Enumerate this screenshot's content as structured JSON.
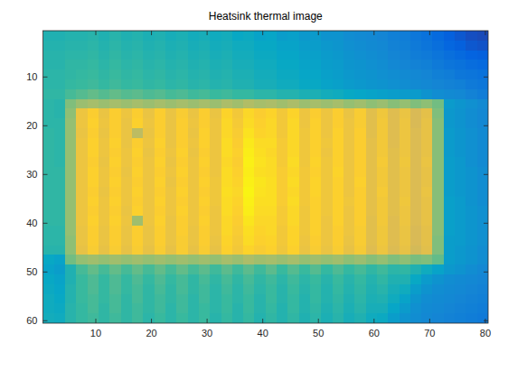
{
  "chart_data": {
    "type": "heatmap",
    "title": "Heatsink thermal image",
    "x": [
      1.5,
      3.5,
      5.5,
      7.5,
      9.5,
      11.5,
      13.5,
      15.5,
      17.5,
      19.5,
      21.5,
      23.5,
      25.5,
      27.5,
      29.5,
      31.5,
      33.5,
      35.5,
      37.5,
      39.5,
      41.5,
      43.5,
      45.5,
      47.5,
      49.5,
      51.5,
      53.5,
      55.5,
      57.5,
      59.5,
      61.5,
      63.5,
      65.5,
      67.5,
      69.5,
      71.5,
      73.5,
      75.5,
      77.5,
      79.5
    ],
    "y": [
      1.5,
      3.5,
      5.5,
      7.5,
      9.5,
      11.5,
      13.5,
      15.5,
      17.5,
      19.5,
      21.5,
      23.5,
      25.5,
      27.5,
      29.5,
      31.5,
      33.5,
      35.5,
      37.5,
      39.5,
      41.5,
      43.5,
      45.5,
      47.5,
      49.5,
      51.5,
      53.5,
      55.5,
      57.5,
      59.5
    ],
    "z": [
      [
        44,
        44,
        45,
        45,
        46,
        44,
        46,
        44,
        45,
        43,
        44,
        42,
        43,
        41,
        42,
        40,
        41,
        38,
        39,
        36,
        37,
        34,
        35,
        32,
        33,
        30,
        30,
        28,
        27,
        26,
        25,
        23,
        22,
        20,
        18,
        15,
        12,
        10,
        8,
        7
      ],
      [
        45,
        45,
        46,
        46,
        47,
        45,
        47,
        45,
        46,
        44,
        45,
        43,
        44,
        42,
        43,
        41,
        42,
        40,
        40,
        38,
        38,
        36,
        36,
        34,
        34,
        32,
        31,
        29,
        28,
        27,
        26,
        24,
        23,
        21,
        19,
        17,
        14,
        12,
        10,
        9
      ],
      [
        46,
        46,
        47,
        47,
        48,
        46,
        48,
        46,
        47,
        45,
        46,
        44,
        45,
        43,
        44,
        42,
        43,
        41,
        41,
        39,
        39,
        37,
        37,
        35,
        35,
        33,
        32,
        30,
        29,
        28,
        27,
        25,
        24,
        22,
        21,
        19,
        17,
        15,
        13,
        12
      ],
      [
        46,
        46,
        48,
        48,
        49,
        47,
        49,
        47,
        48,
        46,
        47,
        45,
        46,
        44,
        45,
        43,
        44,
        42,
        42,
        40,
        40,
        38,
        38,
        36,
        36,
        34,
        33,
        31,
        30,
        29,
        28,
        26,
        25,
        24,
        23,
        21,
        19,
        18,
        16,
        15
      ],
      [
        47,
        47,
        48,
        49,
        50,
        48,
        50,
        48,
        49,
        47,
        48,
        46,
        47,
        45,
        46,
        44,
        45,
        43,
        43,
        41,
        41,
        39,
        39,
        37,
        37,
        35,
        34,
        32,
        31,
        30,
        29,
        28,
        27,
        26,
        25,
        23,
        22,
        20,
        19,
        18
      ],
      [
        47,
        47,
        49,
        50,
        51,
        49,
        51,
        49,
        50,
        48,
        49,
        47,
        48,
        46,
        47,
        45,
        46,
        44,
        44,
        42,
        42,
        40,
        40,
        38,
        38,
        36,
        35,
        33,
        32,
        31,
        30,
        29,
        28,
        27,
        26,
        25,
        24,
        23,
        21,
        20
      ],
      [
        48,
        48,
        52,
        54,
        56,
        54,
        56,
        54,
        55,
        53,
        54,
        52,
        53,
        51,
        52,
        50,
        51,
        49,
        49,
        47,
        47,
        45,
        45,
        43,
        43,
        41,
        40,
        38,
        37,
        36,
        35,
        34,
        33,
        33,
        30,
        28,
        27,
        26,
        24,
        22
      ],
      [
        47,
        46,
        60,
        64,
        66,
        64,
        66,
        64,
        66,
        64,
        66,
        64,
        66,
        64,
        66,
        64,
        67,
        65,
        68,
        66,
        67,
        65,
        67,
        64,
        66,
        64,
        66,
        63,
        65,
        62,
        64,
        61,
        63,
        60,
        62,
        58,
        33,
        31,
        29,
        27
      ],
      [
        47,
        46,
        62,
        82,
        87,
        81,
        87,
        82,
        87,
        81,
        87,
        81,
        86,
        81,
        87,
        81,
        89,
        84,
        90,
        87,
        89,
        84,
        89,
        82,
        87,
        82,
        87,
        81,
        86,
        78,
        83,
        77,
        81,
        75,
        79,
        60,
        32,
        30,
        28,
        26
      ],
      [
        47,
        47,
        63,
        82,
        88,
        82,
        87,
        81,
        88,
        82,
        87,
        81,
        87,
        82,
        87,
        82,
        90,
        85,
        91,
        88,
        90,
        84,
        90,
        82,
        88,
        82,
        87,
        82,
        86,
        78,
        84,
        77,
        82,
        75,
        80,
        61,
        32,
        30,
        28,
        26
      ],
      [
        48,
        47,
        63,
        81,
        87,
        81,
        87,
        81,
        70,
        81,
        87,
        81,
        87,
        81,
        88,
        82,
        90,
        86,
        93,
        89,
        90,
        84,
        90,
        83,
        88,
        82,
        88,
        82,
        87,
        78,
        84,
        77,
        82,
        76,
        80,
        61,
        33,
        31,
        29,
        27
      ],
      [
        48,
        47,
        63,
        82,
        88,
        82,
        88,
        81,
        87,
        82,
        88,
        81,
        87,
        82,
        88,
        82,
        91,
        87,
        95,
        91,
        91,
        85,
        90,
        83,
        88,
        83,
        88,
        82,
        87,
        79,
        84,
        77,
        82,
        76,
        80,
        61,
        33,
        31,
        29,
        27
      ],
      [
        48,
        47,
        63,
        82,
        88,
        82,
        87,
        82,
        88,
        81,
        87,
        82,
        88,
        81,
        87,
        82,
        91,
        88,
        96,
        92,
        90,
        85,
        90,
        83,
        88,
        82,
        88,
        82,
        87,
        79,
        84,
        78,
        82,
        76,
        80,
        61,
        33,
        31,
        29,
        27
      ],
      [
        48,
        47,
        63,
        82,
        87,
        81,
        88,
        82,
        87,
        82,
        88,
        81,
        87,
        82,
        88,
        82,
        90,
        87,
        97,
        93,
        91,
        85,
        91,
        83,
        89,
        83,
        88,
        82,
        87,
        79,
        85,
        78,
        83,
        76,
        81,
        61,
        34,
        32,
        29,
        27
      ],
      [
        48,
        48,
        63,
        82,
        88,
        82,
        87,
        81,
        88,
        82,
        87,
        82,
        88,
        82,
        87,
        82,
        91,
        88,
        96,
        92,
        91,
        86,
        90,
        84,
        88,
        83,
        89,
        82,
        87,
        79,
        84,
        78,
        82,
        76,
        80,
        61,
        34,
        32,
        30,
        28
      ],
      [
        48,
        48,
        63,
        82,
        88,
        82,
        88,
        82,
        87,
        82,
        88,
        81,
        87,
        82,
        88,
        83,
        91,
        89,
        97,
        94,
        92,
        86,
        91,
        84,
        89,
        83,
        88,
        82,
        88,
        79,
        84,
        78,
        82,
        76,
        80,
        61,
        34,
        32,
        30,
        28
      ],
      [
        48,
        48,
        63,
        82,
        87,
        81,
        87,
        82,
        88,
        82,
        87,
        82,
        88,
        82,
        87,
        83,
        92,
        90,
        98,
        93,
        92,
        86,
        90,
        84,
        89,
        83,
        88,
        82,
        87,
        79,
        85,
        78,
        82,
        76,
        81,
        61,
        34,
        32,
        30,
        28
      ],
      [
        48,
        48,
        63,
        82,
        88,
        82,
        88,
        82,
        87,
        82,
        88,
        82,
        87,
        82,
        88,
        83,
        91,
        89,
        97,
        92,
        92,
        86,
        91,
        84,
        88,
        83,
        88,
        83,
        87,
        79,
        84,
        78,
        83,
        76,
        80,
        61,
        35,
        33,
        30,
        28
      ],
      [
        48,
        48,
        63,
        82,
        87,
        82,
        87,
        81,
        88,
        82,
        87,
        82,
        88,
        82,
        87,
        82,
        91,
        88,
        96,
        91,
        91,
        85,
        90,
        83,
        88,
        83,
        88,
        82,
        87,
        79,
        84,
        78,
        82,
        76,
        80,
        61,
        35,
        33,
        31,
        29
      ],
      [
        48,
        48,
        63,
        82,
        88,
        82,
        88,
        82,
        65,
        82,
        88,
        81,
        87,
        82,
        88,
        82,
        90,
        87,
        94,
        90,
        90,
        85,
        90,
        83,
        88,
        82,
        88,
        82,
        87,
        78,
        84,
        77,
        82,
        76,
        80,
        61,
        35,
        33,
        31,
        29
      ],
      [
        47,
        47,
        63,
        81,
        87,
        81,
        87,
        81,
        87,
        81,
        87,
        81,
        87,
        81,
        87,
        82,
        90,
        86,
        92,
        89,
        90,
        84,
        89,
        83,
        88,
        82,
        87,
        82,
        86,
        78,
        83,
        77,
        81,
        75,
        79,
        61,
        35,
        33,
        31,
        29
      ],
      [
        47,
        47,
        62,
        81,
        87,
        81,
        87,
        81,
        87,
        81,
        87,
        81,
        86,
        81,
        87,
        81,
        89,
        85,
        91,
        88,
        89,
        84,
        89,
        82,
        87,
        82,
        87,
        81,
        86,
        78,
        83,
        77,
        81,
        75,
        79,
        60,
        34,
        33,
        31,
        29
      ],
      [
        46,
        46,
        62,
        80,
        86,
        80,
        86,
        80,
        86,
        80,
        86,
        80,
        86,
        80,
        86,
        80,
        88,
        84,
        89,
        86,
        88,
        83,
        88,
        81,
        86,
        81,
        86,
        80,
        85,
        77,
        82,
        76,
        80,
        74,
        78,
        60,
        34,
        32,
        30,
        28
      ],
      [
        38,
        36,
        58,
        63,
        65,
        63,
        65,
        63,
        65,
        63,
        65,
        63,
        65,
        63,
        65,
        63,
        66,
        64,
        67,
        65,
        66,
        64,
        66,
        63,
        65,
        63,
        65,
        62,
        64,
        61,
        63,
        60,
        62,
        59,
        60,
        56,
        34,
        32,
        30,
        28
      ],
      [
        36,
        34,
        44,
        52,
        56,
        52,
        56,
        52,
        56,
        52,
        56,
        52,
        56,
        52,
        55,
        51,
        55,
        51,
        55,
        51,
        55,
        50,
        54,
        50,
        54,
        49,
        53,
        49,
        52,
        48,
        51,
        47,
        48,
        44,
        40,
        36,
        32,
        30,
        28,
        26
      ],
      [
        38,
        36,
        44,
        50,
        53,
        49,
        53,
        49,
        53,
        49,
        53,
        49,
        52,
        48,
        52,
        48,
        52,
        48,
        52,
        48,
        51,
        47,
        51,
        47,
        50,
        46,
        50,
        46,
        49,
        45,
        48,
        44,
        44,
        38,
        33,
        30,
        28,
        27,
        26,
        25
      ],
      [
        39,
        37,
        45,
        50,
        53,
        49,
        53,
        49,
        52,
        48,
        52,
        48,
        52,
        48,
        51,
        47,
        51,
        47,
        51,
        47,
        50,
        46,
        50,
        46,
        49,
        45,
        49,
        45,
        48,
        44,
        46,
        42,
        40,
        34,
        30,
        28,
        27,
        26,
        25,
        24
      ],
      [
        40,
        38,
        45,
        50,
        52,
        49,
        52,
        48,
        52,
        48,
        51,
        48,
        51,
        47,
        51,
        47,
        50,
        47,
        50,
        46,
        50,
        46,
        49,
        45,
        49,
        45,
        48,
        44,
        47,
        43,
        44,
        40,
        36,
        31,
        28,
        27,
        26,
        25,
        24,
        23
      ],
      [
        40,
        39,
        46,
        49,
        52,
        48,
        52,
        48,
        51,
        48,
        51,
        47,
        51,
        47,
        50,
        47,
        50,
        46,
        50,
        46,
        49,
        45,
        49,
        45,
        48,
        44,
        47,
        43,
        46,
        42,
        42,
        37,
        33,
        29,
        27,
        26,
        25,
        24,
        23,
        22
      ],
      [
        41,
        40,
        46,
        49,
        51,
        48,
        51,
        48,
        51,
        47,
        50,
        47,
        50,
        47,
        50,
        46,
        49,
        46,
        49,
        45,
        48,
        45,
        48,
        44,
        47,
        43,
        46,
        42,
        44,
        40,
        39,
        34,
        30,
        28,
        26,
        25,
        24,
        23,
        22,
        21
      ]
    ],
    "color_range": [
      0,
      100
    ],
    "xlim": [
      0.5,
      80.5
    ],
    "ylim": [
      0.5,
      60.5
    ],
    "xticks": [
      10,
      20,
      30,
      40,
      50,
      60,
      70,
      80
    ],
    "yticks": [
      10,
      20,
      30,
      40,
      50,
      60
    ]
  }
}
